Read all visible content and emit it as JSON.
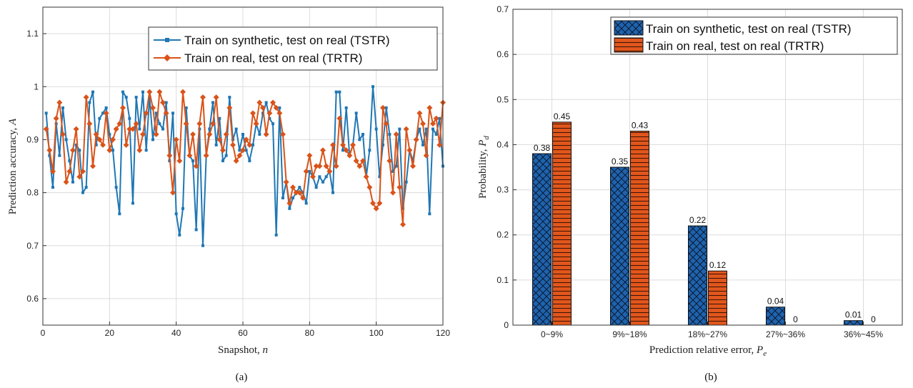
{
  "captions": {
    "a": "(a)",
    "b": "(b)"
  },
  "colors": {
    "blue": "#1f77b4",
    "orange": "#d95319",
    "bar_blue": "#1f63ad",
    "bar_orange": "#e0561c"
  },
  "chart_data": [
    {
      "type": "line",
      "xlabel_text": "Snapshot, ",
      "xlabel_var": "n",
      "ylabel_text": "Prediction accuracy, ",
      "ylabel_var": "A",
      "xlim": [
        0,
        120
      ],
      "ylim": [
        0.55,
        1.15
      ],
      "xticks": [
        0,
        20,
        40,
        60,
        80,
        100,
        120
      ],
      "yticks": [
        0.6,
        0.7,
        0.8,
        0.9,
        1,
        1.1
      ],
      "ytick_labels": [
        "0.6",
        "0.7",
        "0.8",
        "0.9",
        "1",
        "1.1"
      ],
      "grid": true,
      "legend_position": "top-right",
      "series": [
        {
          "name": "Train on synthetic, test on real (TSTR)",
          "marker": "square",
          "values": [
            0.95,
            0.87,
            0.81,
            0.93,
            0.87,
            0.96,
            0.9,
            0.86,
            0.82,
            0.89,
            0.88,
            0.8,
            0.81,
            0.97,
            0.99,
            0.89,
            0.94,
            0.95,
            0.96,
            0.91,
            0.88,
            0.81,
            0.76,
            0.99,
            0.98,
            0.94,
            0.78,
            0.98,
            0.92,
            0.99,
            0.88,
            0.98,
            0.9,
            0.95,
            0.93,
            0.92,
            0.97,
            0.86,
            0.95,
            0.76,
            0.72,
            0.77,
            0.96,
            0.87,
            0.86,
            0.73,
            0.92,
            0.7,
            0.87,
            0.92,
            0.97,
            0.89,
            0.94,
            0.86,
            0.87,
            0.98,
            0.9,
            0.92,
            0.88,
            0.91,
            0.88,
            0.86,
            0.89,
            0.93,
            0.91,
            0.95,
            0.97,
            0.94,
            0.93,
            0.72,
            0.96,
            0.79,
            0.82,
            0.77,
            0.79,
            0.8,
            0.81,
            0.8,
            0.78,
            0.84,
            0.83,
            0.81,
            0.83,
            0.82,
            0.83,
            0.84,
            0.8,
            0.99,
            0.99,
            0.88,
            0.96,
            0.87,
            0.89,
            0.95,
            0.9,
            0.91,
            0.83,
            0.88,
            1.0,
            0.92,
            0.83,
            0.89,
            0.96,
            0.91,
            0.84,
            0.85,
            0.92,
            0.77,
            0.82,
            0.88,
            0.86,
            0.9,
            0.92,
            0.89,
            0.92,
            0.76,
            0.92,
            0.91,
            0.94,
            0.85
          ],
          "color": "#1f77b4"
        },
        {
          "name": "Train on real, test on real (TRTR)",
          "marker": "diamond",
          "values": [
            0.92,
            0.88,
            0.84,
            0.94,
            0.97,
            0.91,
            0.82,
            0.84,
            0.88,
            0.92,
            0.83,
            0.84,
            0.98,
            0.93,
            0.85,
            0.91,
            0.9,
            0.89,
            0.95,
            0.88,
            0.9,
            0.92,
            0.93,
            0.96,
            0.89,
            0.92,
            0.92,
            0.93,
            0.88,
            0.91,
            0.95,
            0.99,
            0.96,
            0.91,
            0.99,
            0.97,
            0.95,
            0.87,
            0.8,
            0.9,
            0.86,
            0.99,
            0.93,
            0.87,
            0.91,
            0.85,
            0.93,
            0.98,
            0.87,
            0.91,
            0.93,
            0.98,
            0.9,
            0.88,
            0.91,
            0.96,
            0.89,
            0.86,
            0.87,
            0.88,
            0.9,
            0.89,
            0.95,
            0.93,
            0.97,
            0.96,
            0.91,
            0.95,
            0.97,
            0.96,
            0.95,
            0.91,
            0.82,
            0.78,
            0.81,
            0.8,
            0.8,
            0.79,
            0.84,
            0.87,
            0.83,
            0.85,
            0.85,
            0.88,
            0.85,
            0.84,
            0.89,
            0.85,
            0.94,
            0.89,
            0.88,
            0.87,
            0.89,
            0.86,
            0.85,
            0.86,
            0.83,
            0.81,
            0.78,
            0.77,
            0.78,
            0.96,
            0.93,
            0.86,
            0.8,
            0.91,
            0.81,
            0.74,
            0.92,
            0.88,
            0.85,
            0.9,
            0.95,
            0.93,
            0.87,
            0.96,
            0.93,
            0.94,
            0.89,
            0.97
          ],
          "color": "#d95319"
        }
      ]
    },
    {
      "type": "bar",
      "xlabel_text": "Prediction relative error, ",
      "xlabel_var": "P",
      "xlabel_sub": "e",
      "ylabel_text": "Probability, ",
      "ylabel_var": "P",
      "ylabel_sub": "d",
      "categories": [
        "0~9%",
        "9%~18%",
        "18%~27%",
        "27%~36%",
        "36%~45%"
      ],
      "ylim": [
        0,
        0.7
      ],
      "yticks": [
        0,
        0.1,
        0.2,
        0.3,
        0.4,
        0.5,
        0.6,
        0.7
      ],
      "grid": true,
      "legend_position": "top-right",
      "series": [
        {
          "name": "Train on synthetic, test on real (TSTR)",
          "hatch": "crosshatch",
          "values": [
            0.38,
            0.35,
            0.22,
            0.04,
            0.01
          ],
          "labels": [
            "0.38",
            "0.35",
            "0.22",
            "0.04",
            "0.01"
          ]
        },
        {
          "name": "Train on real, test on real (TRTR)",
          "hatch": "horizontal",
          "values": [
            0.45,
            0.43,
            0.12,
            0,
            0
          ],
          "labels": [
            "0.45",
            "0.43",
            "0.12",
            "0",
            "0"
          ]
        }
      ]
    }
  ]
}
